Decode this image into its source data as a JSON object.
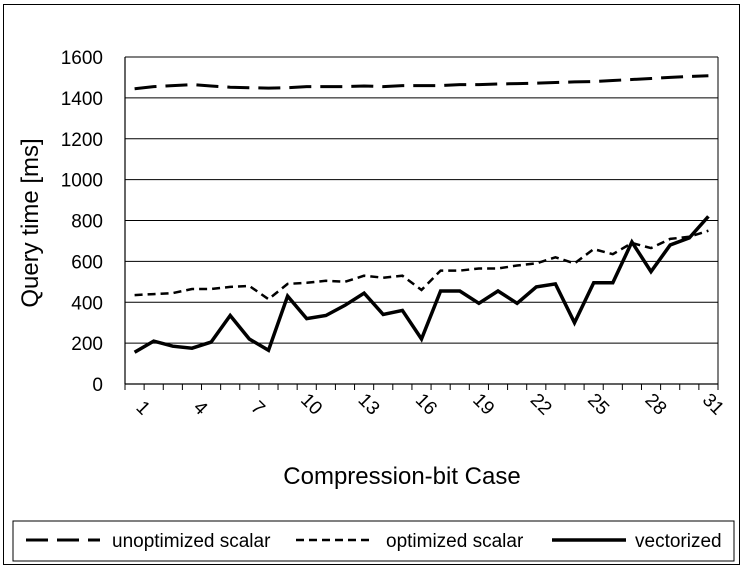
{
  "chart_data": {
    "type": "line",
    "title": "",
    "xlabel": "Compression-bit Case",
    "ylabel": "Query time [ms]",
    "ylim": [
      0,
      1600
    ],
    "yticks": [
      0,
      200,
      400,
      600,
      800,
      1000,
      1200,
      1400,
      1600
    ],
    "xtick_labels": [
      "1",
      "4",
      "7",
      "10",
      "13",
      "16",
      "19",
      "22",
      "25",
      "28",
      "31"
    ],
    "x": [
      1,
      2,
      3,
      4,
      5,
      6,
      7,
      8,
      9,
      10,
      11,
      12,
      13,
      14,
      15,
      16,
      17,
      18,
      19,
      20,
      21,
      22,
      23,
      24,
      25,
      26,
      27,
      28,
      29,
      30,
      31
    ],
    "grid": "horizontal",
    "legend_position": "bottom",
    "series": [
      {
        "name": "unoptimized scalar",
        "style": "long-dash",
        "color": "#000000",
        "values": [
          1445,
          1455,
          1460,
          1465,
          1458,
          1452,
          1450,
          1448,
          1450,
          1455,
          1455,
          1455,
          1458,
          1455,
          1460,
          1460,
          1460,
          1465,
          1465,
          1468,
          1470,
          1472,
          1475,
          1478,
          1480,
          1485,
          1490,
          1495,
          1500,
          1505,
          1508
        ]
      },
      {
        "name": "optimized scalar",
        "style": "short-dash",
        "color": "#000000",
        "values": [
          435,
          440,
          445,
          465,
          465,
          475,
          480,
          415,
          490,
          495,
          505,
          500,
          530,
          520,
          530,
          460,
          555,
          555,
          565,
          565,
          580,
          590,
          620,
          590,
          660,
          635,
          690,
          665,
          710,
          720,
          750
        ]
      },
      {
        "name": "vectorized",
        "style": "solid",
        "color": "#000000",
        "values": [
          155,
          210,
          185,
          175,
          205,
          335,
          220,
          165,
          430,
          320,
          335,
          385,
          445,
          340,
          360,
          220,
          455,
          455,
          395,
          455,
          395,
          475,
          490,
          300,
          495,
          495,
          695,
          550,
          680,
          715,
          820
        ]
      }
    ]
  }
}
